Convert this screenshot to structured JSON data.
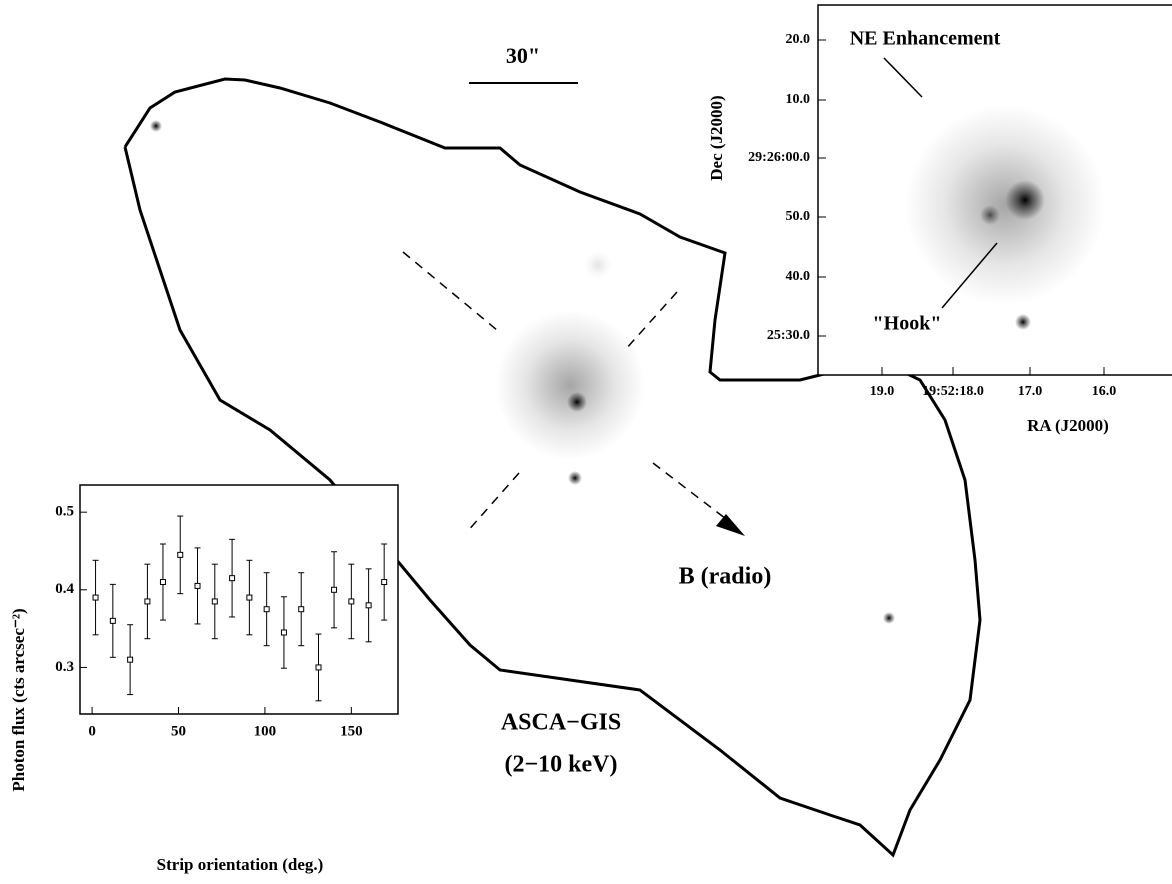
{
  "image": {
    "scale_label": "30\"",
    "source_label": "B (radio)",
    "instrument": "ASCA−GIS",
    "band": "(2−10 keV)"
  },
  "inset": {
    "ylabel": "Dec (J2000)",
    "xlabel": "RA (J2000)",
    "yticks": [
      "20.0",
      "10.0",
      "29:26:00.0",
      "50.0",
      "40.0",
      "25:30.0"
    ],
    "xticks": [
      "19.0",
      "19:52:18.0",
      "17.0",
      "16.0"
    ],
    "annotations": [
      "NE Enhancement",
      "\"Hook\""
    ]
  },
  "chart_data": {
    "type": "errorbar",
    "xlabel": "Strip orientation (deg.)",
    "ylabel": "Photon flux (cts arcsec⁻²)",
    "x": [
      2,
      12,
      22,
      32,
      41,
      51,
      61,
      71,
      81,
      91,
      101,
      111,
      121,
      131,
      140,
      150,
      160,
      169
    ],
    "values": [
      0.39,
      0.36,
      0.31,
      0.385,
      0.41,
      0.445,
      0.405,
      0.385,
      0.415,
      0.39,
      0.375,
      0.345,
      0.375,
      0.3,
      0.4,
      0.385,
      0.38,
      0.41
    ],
    "errors": [
      0.048,
      0.047,
      0.045,
      0.048,
      0.049,
      0.05,
      0.049,
      0.048,
      0.05,
      0.048,
      0.047,
      0.046,
      0.047,
      0.043,
      0.049,
      0.048,
      0.047,
      0.049
    ],
    "xlim": [
      -7,
      177
    ],
    "ylim": [
      0.24,
      0.535
    ],
    "xticks": [
      0,
      50,
      100,
      150
    ],
    "yticks": [
      0.3,
      0.4,
      0.5
    ]
  }
}
